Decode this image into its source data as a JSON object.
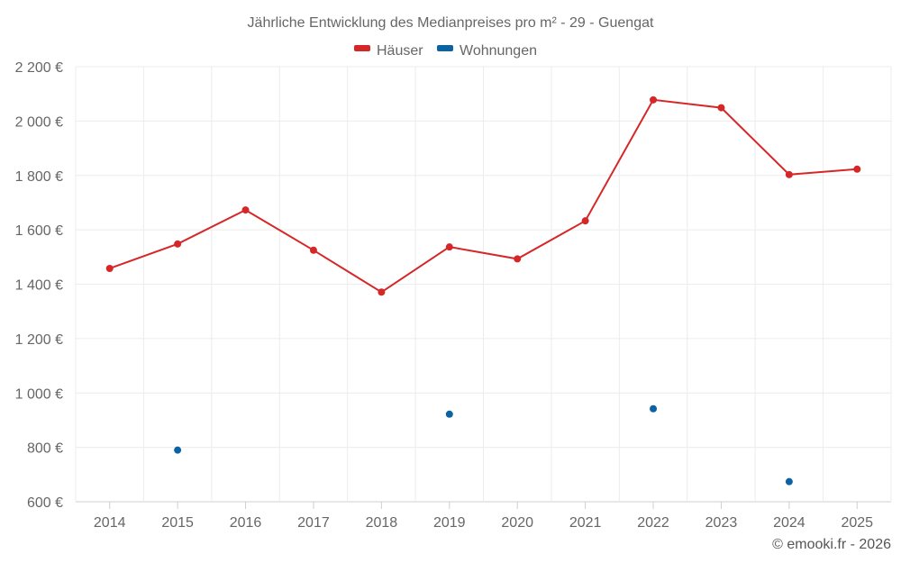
{
  "chart_data": {
    "type": "line",
    "title": "Jährliche Entwicklung des Medianpreises pro m² - 29 - Guengat",
    "categories": [
      "2014",
      "2015",
      "2016",
      "2017",
      "2018",
      "2019",
      "2020",
      "2021",
      "2022",
      "2023",
      "2024",
      "2025"
    ],
    "y_ticks": [
      "600 €",
      "800 €",
      "1 000 €",
      "1 200 €",
      "1 400 €",
      "1 600 €",
      "1 800 €",
      "2 000 €",
      "2 200 €"
    ],
    "ylim": [
      600,
      2200
    ],
    "series": [
      {
        "name": "Häuser",
        "color": "#d62728",
        "values": [
          1458,
          1548,
          1673,
          1525,
          1371,
          1537,
          1493,
          1633,
          2078,
          2049,
          1803,
          1823
        ]
      },
      {
        "name": "Wohnungen",
        "color": "#0b63a3",
        "values": [
          null,
          790,
          null,
          null,
          null,
          922,
          null,
          null,
          942,
          null,
          674,
          null
        ]
      }
    ],
    "legend_position": "top-center",
    "credit": "© emooki.fr - 2026"
  }
}
